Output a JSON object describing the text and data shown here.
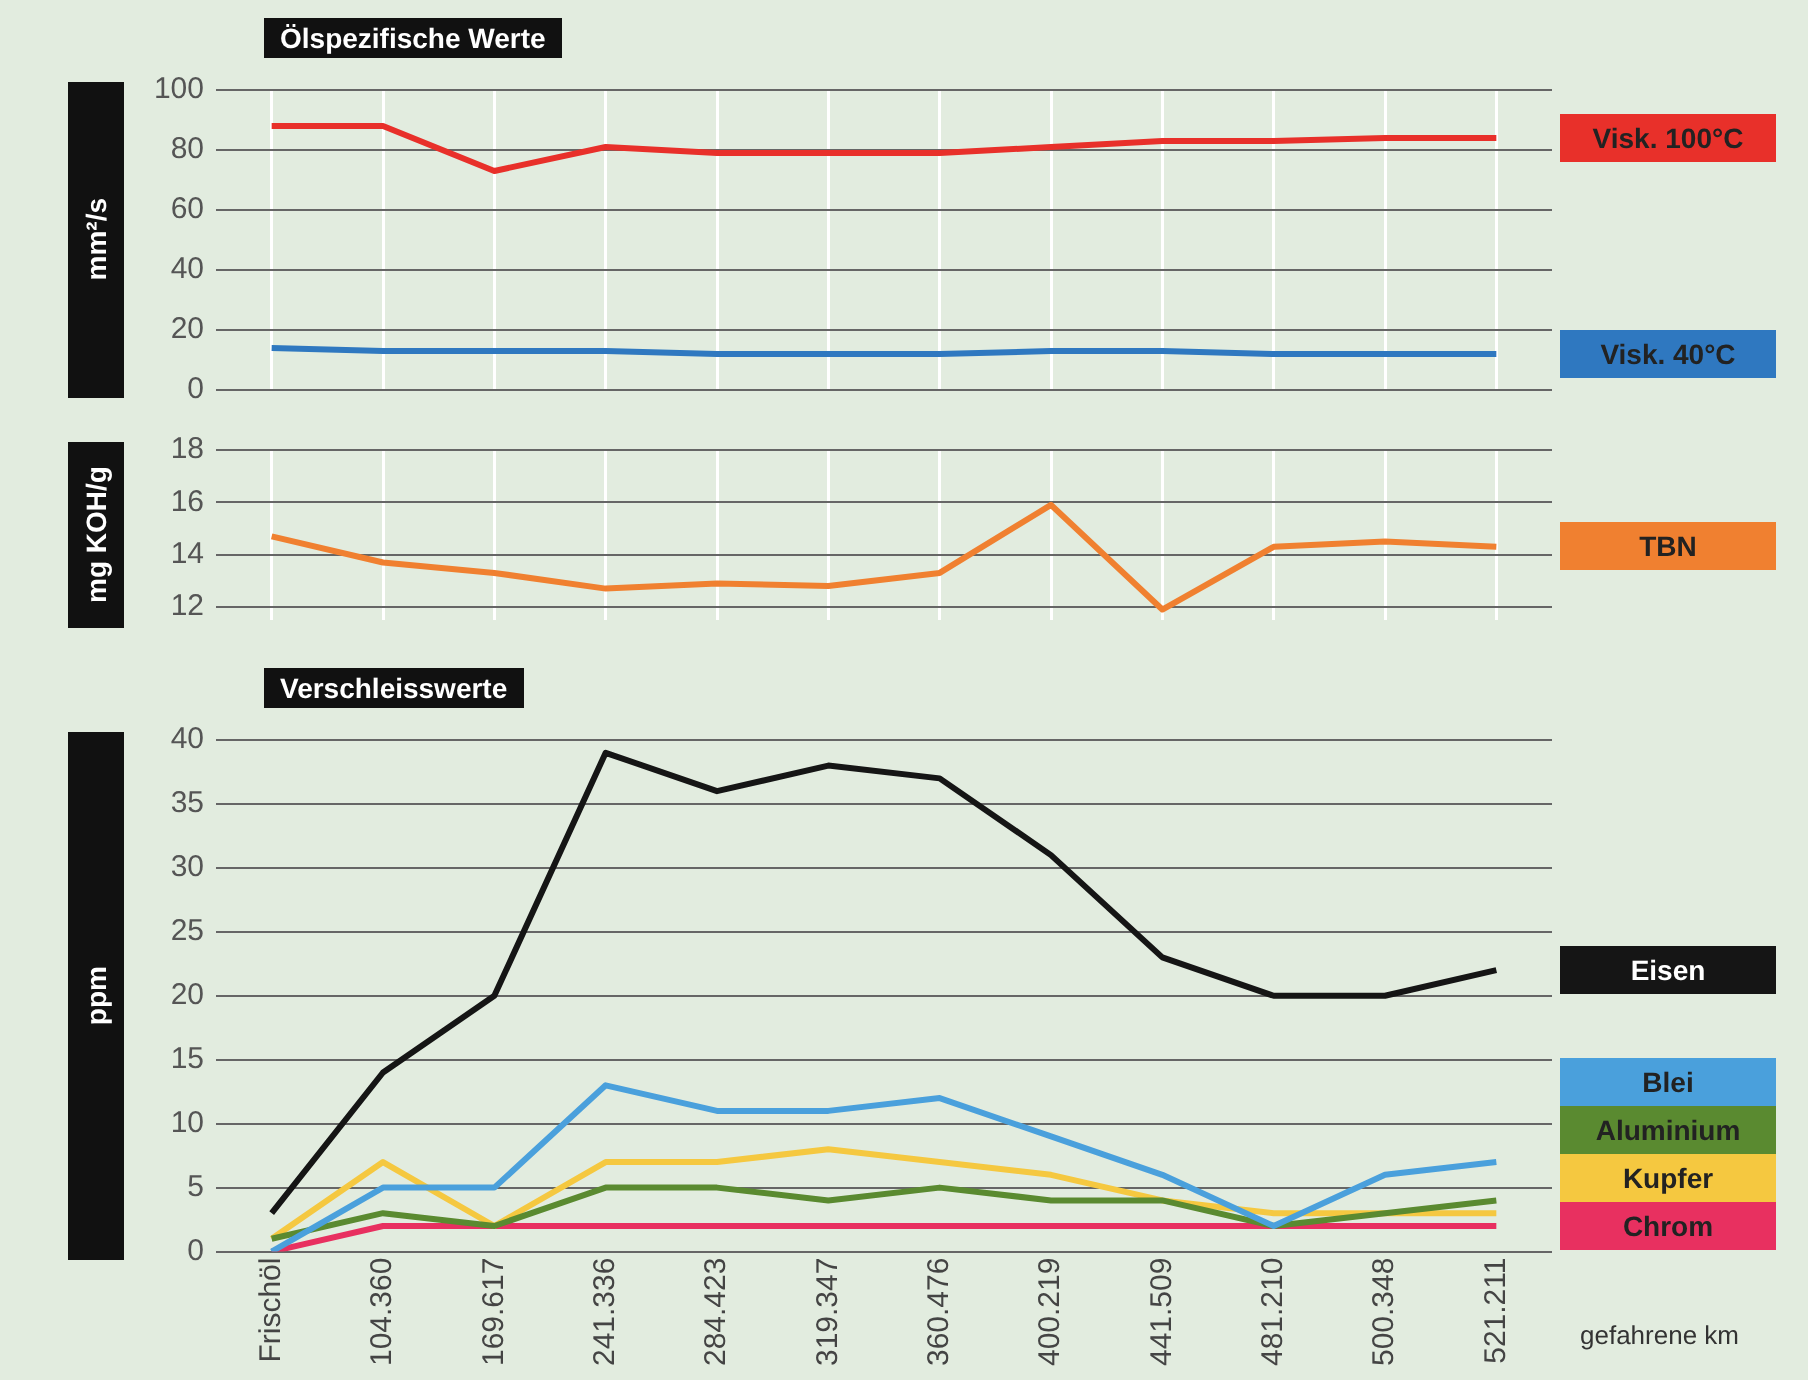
{
  "chart_data": [
    {
      "type": "line",
      "title": "Ölspezifische Werte",
      "ylabel": "mm²/s",
      "categories": [
        null,
        null,
        null,
        null,
        null,
        null,
        null,
        null,
        null,
        null,
        null,
        null
      ],
      "ylim": [
        0,
        100
      ],
      "yticks": [
        0,
        20,
        40,
        60,
        80,
        100
      ],
      "grid": true,
      "tick_labels": "y",
      "series": [
        {
          "name": "Visk. 100°C",
          "color": "#e8302a",
          "values": [
            88,
            88,
            73,
            81,
            79,
            79,
            79,
            81,
            83,
            83,
            84,
            84
          ]
        },
        {
          "name": "Visk. 40°C",
          "color": "#2f78c0",
          "values": [
            14,
            13,
            13,
            13,
            12,
            12,
            12,
            13,
            13,
            12,
            12,
            12
          ]
        }
      ]
    },
    {
      "type": "line",
      "ylabel": "mg KOH/g",
      "categories": [
        null,
        null,
        null,
        null,
        null,
        null,
        null,
        null,
        null,
        null,
        null,
        null
      ],
      "ylim": [
        11.5,
        18
      ],
      "yticks": [
        12,
        14,
        16,
        18
      ],
      "grid": true,
      "tick_labels": "y",
      "series": [
        {
          "name": "TBN",
          "color": "#f08030",
          "values": [
            14.7,
            13.7,
            13.3,
            12.7,
            12.9,
            12.8,
            13.3,
            15.9,
            11.9,
            14.3,
            14.5,
            14.3
          ]
        }
      ]
    },
    {
      "type": "line",
      "title": "Verschleisswerte",
      "ylabel": "ppm",
      "xlabel": "gefahrene km",
      "categories": [
        "Frischöl",
        "104.360",
        "169.617",
        "241.336",
        "284.423",
        "319.347",
        "360.476",
        "400.219",
        "441.509",
        "481.210",
        "500.348",
        "521.211"
      ],
      "ylim": [
        0,
        40
      ],
      "yticks": [
        0,
        5,
        10,
        15,
        20,
        25,
        30,
        35,
        40
      ],
      "grid": "y",
      "series": [
        {
          "name": "Eisen",
          "color": "#151515",
          "values": [
            3,
            14,
            20,
            39,
            36,
            38,
            37,
            31,
            23,
            20,
            20,
            22
          ]
        },
        {
          "name": "Blei",
          "color": "#4aa0dc",
          "values": [
            0,
            5,
            5,
            13,
            11,
            11,
            12,
            9,
            6,
            2,
            6,
            7
          ]
        },
        {
          "name": "Aluminium",
          "color": "#5a8a30",
          "values": [
            1,
            3,
            2,
            5,
            5,
            4,
            5,
            4,
            4,
            2,
            3,
            4
          ]
        },
        {
          "name": "Kupfer",
          "color": "#f5c840",
          "values": [
            1,
            7,
            2,
            7,
            7,
            8,
            7,
            6,
            4,
            3,
            3,
            3
          ]
        },
        {
          "name": "Chrom",
          "color": "#e83060",
          "values": [
            0,
            2,
            2,
            2,
            2,
            2,
            2,
            2,
            2,
            2,
            2,
            2
          ]
        }
      ]
    }
  ]
}
